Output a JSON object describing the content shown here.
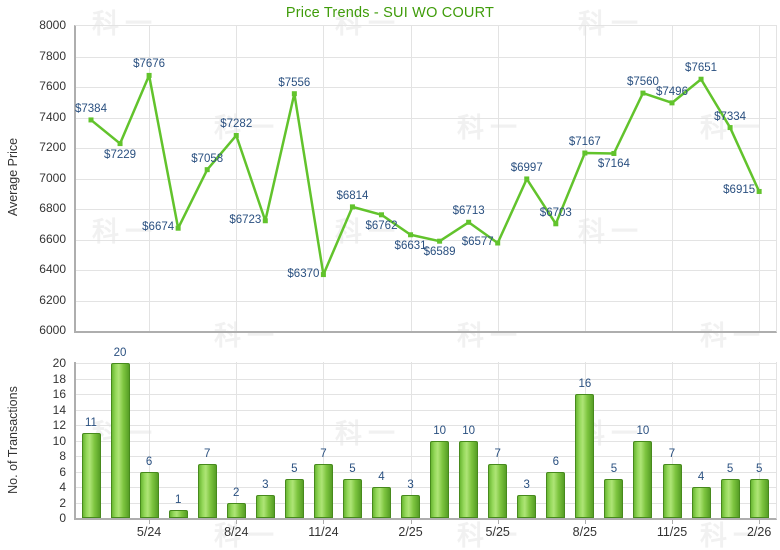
{
  "title": "Price Trends - SUI WO COURT",
  "watermark_text": "科一",
  "colors": {
    "title": "#3f9c0a",
    "line": "#62c32c",
    "bar_fill": "#8ed453",
    "data_label": "#2a5080",
    "axis_text": "#333333",
    "grid": "#e3e3e3",
    "axis_line": "#aeaeae"
  },
  "chart_data": [
    {
      "type": "line",
      "title": "Price Trends - SUI WO COURT",
      "ylabel": "Average Price",
      "ylim": [
        6000,
        8000
      ],
      "ytick_step": 200,
      "grid": true,
      "legend": "none",
      "x_tick_labels": [
        "5/24",
        "8/24",
        "11/24",
        "2/25",
        "5/25",
        "8/25",
        "11/25",
        "2/26"
      ],
      "x_tick_indices": [
        2,
        5,
        8,
        11,
        14,
        17,
        20,
        23
      ],
      "values": [
        7384,
        7229,
        7676,
        6674,
        7058,
        7282,
        6723,
        7556,
        6370,
        6814,
        6762,
        6631,
        6589,
        6713,
        6577,
        6997,
        6703,
        7167,
        7164,
        7560,
        7496,
        7651,
        7334,
        6915
      ],
      "point_labels": [
        "$7384",
        "$7229",
        "$7676",
        "$6674",
        "$7058",
        "$7282",
        "$6723",
        "$7556",
        "$6370",
        "$6814",
        "$6762",
        "$6631",
        "$6589",
        "$6713",
        "$6577",
        "$6997",
        "$6703",
        "$7167",
        "$7164",
        "$7560",
        "$7496",
        "$7651",
        "$7334",
        "$6915"
      ],
      "label_placements": [
        "above",
        "below",
        "above",
        "left",
        "above",
        "above",
        "left",
        "above",
        "left",
        "above",
        "below",
        "below",
        "below",
        "above",
        "left",
        "above",
        "above",
        "above",
        "below",
        "above",
        "above",
        "above",
        "above",
        "left"
      ]
    },
    {
      "type": "bar",
      "ylabel": "No. of Transactions",
      "ylim": [
        0,
        20
      ],
      "ytick_step": 2,
      "grid": true,
      "legend": "none",
      "x_tick_labels": [
        "5/24",
        "8/24",
        "11/24",
        "2/25",
        "5/25",
        "8/25",
        "11/25",
        "2/26"
      ],
      "x_tick_indices": [
        2,
        5,
        8,
        11,
        14,
        17,
        20,
        23
      ],
      "values": [
        11,
        20,
        6,
        1,
        7,
        2,
        3,
        5,
        7,
        5,
        4,
        3,
        10,
        10,
        7,
        3,
        6,
        16,
        5,
        10,
        7,
        4,
        5,
        5
      ]
    }
  ]
}
